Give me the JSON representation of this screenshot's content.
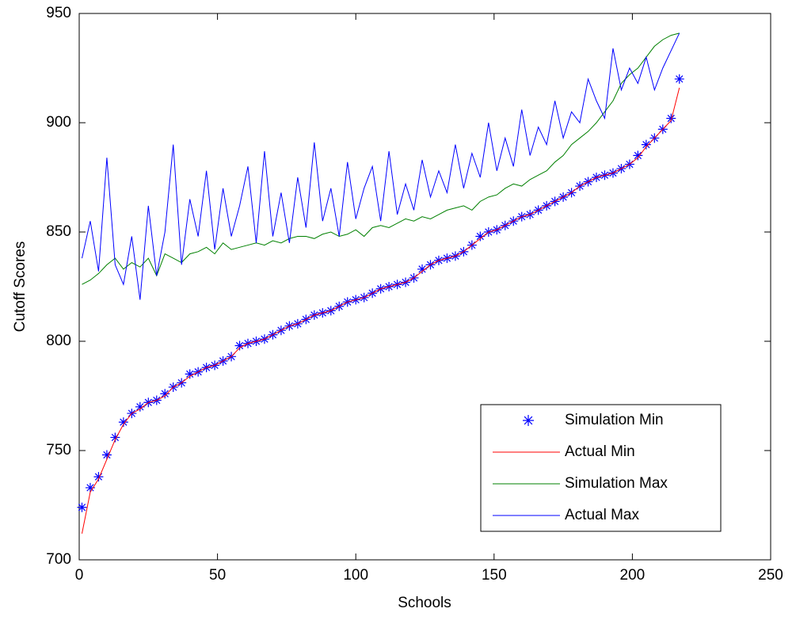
{
  "chart_data": {
    "type": "line",
    "xlabel": "Schools",
    "ylabel": "Cutoff Scores",
    "xlim": [
      0,
      250
    ],
    "xticks": [
      0,
      50,
      100,
      150,
      200,
      250
    ],
    "ylim": [
      700,
      950
    ],
    "yticks": [
      700,
      750,
      800,
      850,
      900,
      950
    ],
    "legend": "southeast",
    "x": [
      1,
      4,
      7,
      10,
      13,
      16,
      19,
      22,
      25,
      28,
      31,
      34,
      37,
      40,
      43,
      46,
      49,
      52,
      55,
      58,
      61,
      64,
      67,
      70,
      73,
      76,
      79,
      82,
      85,
      88,
      91,
      94,
      97,
      100,
      103,
      106,
      109,
      112,
      115,
      118,
      121,
      124,
      127,
      130,
      133,
      136,
      139,
      142,
      145,
      148,
      151,
      154,
      157,
      160,
      163,
      166,
      169,
      172,
      175,
      178,
      181,
      184,
      187,
      190,
      193,
      196,
      199,
      202,
      205,
      208,
      211,
      214,
      217
    ],
    "series": [
      {
        "name": "Simulation Min",
        "color": "#0000ff",
        "marker": "asterisk",
        "values": [
          724,
          733,
          738,
          748,
          756,
          763,
          767,
          770,
          772,
          773,
          776,
          779,
          781,
          785,
          786,
          788,
          789,
          791,
          793,
          798,
          799,
          800,
          801,
          803,
          805,
          807,
          808,
          810,
          812,
          813,
          814,
          816,
          818,
          819,
          820,
          822,
          824,
          825,
          826,
          827,
          829,
          833,
          835,
          837,
          838,
          839,
          841,
          844,
          848,
          850,
          851,
          853,
          855,
          857,
          858,
          860,
          862,
          864,
          866,
          868,
          871,
          873,
          875,
          876,
          877,
          879,
          881,
          885,
          890,
          893,
          897,
          902,
          920
        ]
      },
      {
        "name": "Actual Min",
        "color": "#ff0000",
        "values": [
          712,
          731,
          737,
          746,
          755,
          762,
          767,
          769,
          772,
          773,
          775,
          779,
          781,
          784,
          786,
          788,
          789,
          791,
          793,
          797,
          799,
          800,
          801,
          803,
          805,
          807,
          808,
          810,
          812,
          813,
          814,
          816,
          818,
          819,
          820,
          822,
          824,
          825,
          826,
          827,
          829,
          832,
          835,
          837,
          838,
          839,
          841,
          844,
          847,
          850,
          851,
          853,
          855,
          857,
          858,
          860,
          862,
          864,
          866,
          868,
          871,
          873,
          875,
          876,
          877,
          879,
          881,
          884,
          889,
          893,
          897,
          901,
          916
        ]
      },
      {
        "name": "Simulation Max",
        "color": "#008000",
        "values": [
          826,
          828,
          831,
          835,
          838,
          833,
          836,
          834,
          838,
          830,
          840,
          838,
          836,
          840,
          841,
          843,
          840,
          845,
          842,
          843,
          844,
          845,
          844,
          846,
          845,
          847,
          848,
          848,
          847,
          849,
          850,
          848,
          849,
          851,
          848,
          852,
          853,
          852,
          854,
          856,
          855,
          857,
          856,
          858,
          860,
          861,
          862,
          860,
          864,
          866,
          867,
          870,
          872,
          871,
          874,
          876,
          878,
          882,
          885,
          890,
          893,
          896,
          900,
          905,
          910,
          918,
          922,
          925,
          930,
          935,
          938,
          940,
          941
        ]
      },
      {
        "name": "Actual Max",
        "color": "#0000ff",
        "values": [
          838,
          855,
          832,
          884,
          835,
          826,
          848,
          819,
          862,
          830,
          850,
          890,
          835,
          865,
          848,
          878,
          842,
          870,
          848,
          862,
          880,
          845,
          887,
          848,
          868,
          845,
          875,
          852,
          891,
          855,
          870,
          848,
          882,
          856,
          870,
          880,
          855,
          887,
          858,
          872,
          860,
          883,
          866,
          878,
          868,
          890,
          870,
          886,
          875,
          900,
          878,
          893,
          880,
          906,
          885,
          898,
          890,
          910,
          893,
          905,
          900,
          920,
          910,
          902,
          934,
          915,
          925,
          918,
          930,
          915,
          925,
          933,
          941
        ]
      }
    ]
  }
}
